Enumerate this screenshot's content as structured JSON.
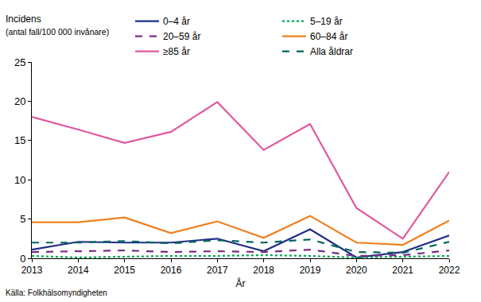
{
  "chart_data": {
    "type": "line",
    "y_label": "Incidens",
    "x_label": "År",
    "annotations": [
      {
        "text": "(antal fall/100 000 invånare)"
      },
      {
        "text": "Källa: Folkhälsomyndigheten"
      }
    ],
    "x": [
      2013,
      2014,
      2015,
      2016,
      2017,
      2018,
      2019,
      2020,
      2021,
      2022
    ],
    "series": [
      {
        "name": "0–4 år",
        "color": "#1f2f86",
        "line_style": "solid",
        "values": [
          1.1,
          2.1,
          2.0,
          2.0,
          2.5,
          0.9,
          3.7,
          0.1,
          0.8,
          2.9
        ]
      },
      {
        "name": "5–19 år",
        "color": "#00a651",
        "line_style": "dotted",
        "values": [
          0.3,
          0.1,
          0.2,
          0.3,
          0.3,
          0.4,
          0.3,
          0.1,
          0.2,
          0.3
        ]
      },
      {
        "name": "20–59 år",
        "color": "#7b2c85",
        "line_style": "dashed",
        "values": [
          0.8,
          0.9,
          1.0,
          0.8,
          0.9,
          0.8,
          1.1,
          0.3,
          0.4,
          1.0
        ]
      },
      {
        "name": "60–84 år",
        "color": "#f07f1e",
        "line_style": "solid",
        "values": [
          4.6,
          4.6,
          5.2,
          3.2,
          4.7,
          2.6,
          5.4,
          2.0,
          1.7,
          4.8
        ]
      },
      {
        "name": "≥85 år",
        "color": "#e0589f",
        "line_style": "solid",
        "values": [
          18.0,
          16.4,
          14.7,
          16.1,
          19.9,
          13.8,
          17.1,
          6.4,
          2.5,
          11.0
        ]
      },
      {
        "name": "Alla åldrar",
        "color": "#00665e",
        "line_style": "dashed",
        "values": [
          2.0,
          2.0,
          2.2,
          1.9,
          2.3,
          2.0,
          2.4,
          0.8,
          0.7,
          2.1
        ]
      }
    ],
    "xlim": [
      2013,
      2022
    ],
    "xticks": [
      2013,
      2014,
      2015,
      2016,
      2017,
      2018,
      2019,
      2020,
      2021,
      2022
    ],
    "ylim": [
      0,
      25
    ],
    "yticks": [
      0,
      5,
      10,
      15,
      20,
      25
    ],
    "grid": false,
    "legend": "top"
  }
}
